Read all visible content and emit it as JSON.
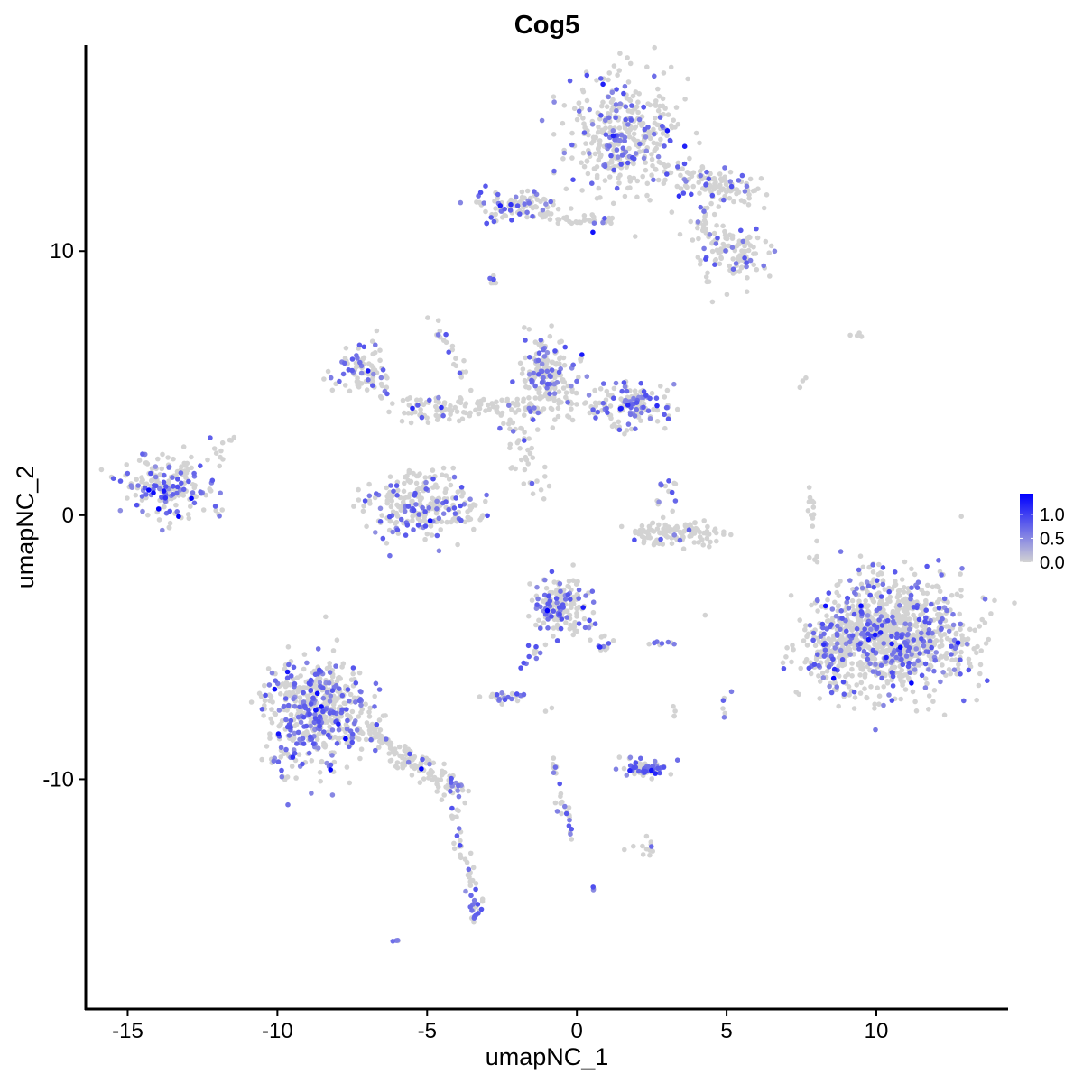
{
  "chart_data": {
    "type": "scatter",
    "title": "Cog5",
    "xlabel": "umapNC_1",
    "ylabel": "umapNC_2",
    "xlim": [
      -16.4,
      14.4
    ],
    "ylim": [
      -18.7,
      17.8
    ],
    "x_ticks": [
      -15,
      -10,
      -5,
      0,
      5,
      10
    ],
    "x_tick_labels": [
      "-15",
      "-10",
      "-5",
      "0",
      "5",
      "10"
    ],
    "y_ticks": [
      -10,
      0,
      10
    ],
    "y_tick_labels": [
      "-10",
      "0",
      "10"
    ],
    "grid": false,
    "color_scale": {
      "low": "#d3d3d3",
      "high": "#0000ff",
      "min": 0,
      "max": 1.43
    },
    "legend": {
      "position": "right",
      "ticks": [
        1.0,
        0.5,
        0.0
      ],
      "tick_labels": [
        "1.0",
        "0.5",
        "0.0"
      ]
    },
    "clusters": [
      {
        "c": [
          1.5,
          14.4
        ],
        "s": [
          1.1,
          1.3
        ],
        "n": 380,
        "f": 0.25
      },
      {
        "from": [
          3.0,
          13.0
        ],
        "to": [
          5.7,
          12.2
        ],
        "s": [
          0.4,
          0.35
        ],
        "n": 120,
        "f": 0.2
      },
      {
        "c": [
          5.2,
          9.8
        ],
        "s": [
          0.7,
          0.6
        ],
        "n": 90,
        "f": 0.25
      },
      {
        "from": [
          4.0,
          11.5
        ],
        "to": [
          5.0,
          10.0
        ],
        "s": [
          0.3,
          0.3
        ],
        "n": 40,
        "f": 0.15
      },
      {
        "c": [
          -2.1,
          11.7
        ],
        "s": [
          0.7,
          0.4
        ],
        "n": 90,
        "f": 0.35
      },
      {
        "from": [
          -1.2,
          11.3
        ],
        "to": [
          1.2,
          11.1
        ],
        "s": [
          0.2,
          0.12
        ],
        "n": 40,
        "f": 0.1
      },
      {
        "c": [
          -2.8,
          8.8
        ],
        "s": [
          0.12,
          0.12
        ],
        "n": 6,
        "f": 0.3
      },
      {
        "c": [
          -7.2,
          5.6
        ],
        "s": [
          0.5,
          0.5
        ],
        "n": 70,
        "f": 0.35
      },
      {
        "from": [
          -7.0,
          5.0
        ],
        "to": [
          -6.3,
          4.5
        ],
        "s": [
          0.25,
          0.25
        ],
        "n": 20,
        "f": 0.1
      },
      {
        "c": [
          -1.0,
          5.2
        ],
        "s": [
          0.6,
          0.9
        ],
        "n": 180,
        "f": 0.3
      },
      {
        "c": [
          1.8,
          4.2
        ],
        "s": [
          0.7,
          0.55
        ],
        "n": 130,
        "f": 0.35
      },
      {
        "from": [
          -6.0,
          4.0
        ],
        "to": [
          0.8,
          4.2
        ],
        "s": [
          0.35,
          0.3
        ],
        "n": 140,
        "f": 0.08
      },
      {
        "from": [
          -4.8,
          7.4
        ],
        "to": [
          -3.6,
          5.0
        ],
        "s": [
          0.15,
          0.2
        ],
        "n": 20,
        "f": 0.3
      },
      {
        "from": [
          -2.5,
          4.0
        ],
        "to": [
          -1.3,
          1.0
        ],
        "s": [
          0.3,
          0.3
        ],
        "n": 40,
        "f": 0.05
      },
      {
        "c": [
          -13.7,
          1.2
        ],
        "s": [
          0.85,
          0.7
        ],
        "n": 200,
        "f": 0.4
      },
      {
        "c": [
          -12.0,
          2.3
        ],
        "s": [
          0.2,
          0.3
        ],
        "n": 6,
        "f": 0
      },
      {
        "c": [
          -11.5,
          2.8
        ],
        "s": [
          0.1,
          0.1
        ],
        "n": 3,
        "f": 0
      },
      {
        "c": [
          -12.0,
          0.1
        ],
        "s": [
          0.15,
          0.15
        ],
        "n": 5,
        "f": 0.3
      },
      {
        "c": [
          -5.2,
          0.2
        ],
        "s": [
          1.1,
          0.6
        ],
        "n": 220,
        "f": 0.3
      },
      {
        "from": [
          -6.2,
          1.5
        ],
        "to": [
          -4.0,
          1.4
        ],
        "s": [
          0.3,
          0.25
        ],
        "n": 30,
        "f": 0.1
      },
      {
        "c": [
          3.3,
          -0.7
        ],
        "s": [
          0.9,
          0.25
        ],
        "n": 120,
        "f": 0.08
      },
      {
        "c": [
          3.0,
          1.0
        ],
        "s": [
          0.2,
          0.5
        ],
        "n": 15,
        "f": 0.3
      },
      {
        "c": [
          10.4,
          -4.6
        ],
        "s": [
          1.5,
          1.25
        ],
        "n": 1100,
        "f": 0.22
      },
      {
        "from": [
          8.2,
          -4.5
        ],
        "to": [
          8.6,
          -6.5
        ],
        "s": [
          0.3,
          0.4
        ],
        "n": 60,
        "f": 0.3
      },
      {
        "c": [
          -0.6,
          -3.4
        ],
        "s": [
          0.55,
          0.6
        ],
        "n": 170,
        "f": 0.35
      },
      {
        "from": [
          0.2,
          -4.0
        ],
        "to": [
          1.1,
          -5.3
        ],
        "s": [
          0.2,
          0.2
        ],
        "n": 20,
        "f": 0.3
      },
      {
        "from": [
          -1.3,
          -4.8
        ],
        "to": [
          -1.8,
          -6.0
        ],
        "s": [
          0.15,
          0.15
        ],
        "n": 12,
        "f": 0.6
      },
      {
        "c": [
          -8.7,
          -7.5
        ],
        "s": [
          1.0,
          1.2
        ],
        "n": 550,
        "f": 0.32
      },
      {
        "from": [
          -7.0,
          -8.3
        ],
        "to": [
          -3.9,
          -10.5
        ],
        "s": [
          0.3,
          0.25
        ],
        "n": 140,
        "f": 0.12
      },
      {
        "from": [
          -4.2,
          -11.0
        ],
        "to": [
          -3.3,
          -15.2
        ],
        "s": [
          0.15,
          0.3
        ],
        "n": 40,
        "f": 0.2
      },
      {
        "c": [
          -3.4,
          -15.0
        ],
        "s": [
          0.2,
          0.2
        ],
        "n": 15,
        "f": 0.6
      },
      {
        "c": [
          -2.4,
          -6.9
        ],
        "s": [
          0.35,
          0.15
        ],
        "n": 25,
        "f": 0.4
      },
      {
        "c": [
          2.3,
          -9.6
        ],
        "s": [
          0.5,
          0.18
        ],
        "n": 70,
        "f": 0.45
      },
      {
        "from": [
          -0.8,
          -9.3
        ],
        "to": [
          -0.2,
          -12.0
        ],
        "s": [
          0.1,
          0.2
        ],
        "n": 30,
        "f": 0.35
      },
      {
        "c": [
          2.3,
          -12.6
        ],
        "s": [
          0.3,
          0.2
        ],
        "n": 12,
        "f": 0.2
      },
      {
        "c": [
          -6.0,
          -16.1
        ],
        "s": [
          0.1,
          0.05
        ],
        "n": 4,
        "f": 0.5
      },
      {
        "c": [
          0.55,
          -14.1
        ],
        "s": [
          0.05,
          0.05
        ],
        "n": 3,
        "f": 0.5
      },
      {
        "from": [
          7.8,
          0.8
        ],
        "to": [
          8.0,
          -1.8
        ],
        "s": [
          0.08,
          0.2
        ],
        "n": 15,
        "f": 0
      },
      {
        "c": [
          9.4,
          6.8
        ],
        "s": [
          0.2,
          0.05
        ],
        "n": 4,
        "f": 0
      },
      {
        "c": [
          7.6,
          4.8
        ],
        "s": [
          0.2,
          0.3
        ],
        "n": 3,
        "f": 0
      },
      {
        "c": [
          2.9,
          -4.9
        ],
        "s": [
          0.3,
          0.08
        ],
        "n": 8,
        "f": 0.2
      },
      {
        "c": [
          5.0,
          -7.3
        ],
        "s": [
          0.1,
          0.3
        ],
        "n": 6,
        "f": 0.6
      },
      {
        "c": [
          3.2,
          -7.3
        ],
        "s": [
          0.1,
          0.3
        ],
        "n": 4,
        "f": 0
      },
      {
        "c": [
          -0.9,
          -7.3
        ],
        "s": [
          0.1,
          0.1
        ],
        "n": 2,
        "f": 0
      }
    ]
  }
}
